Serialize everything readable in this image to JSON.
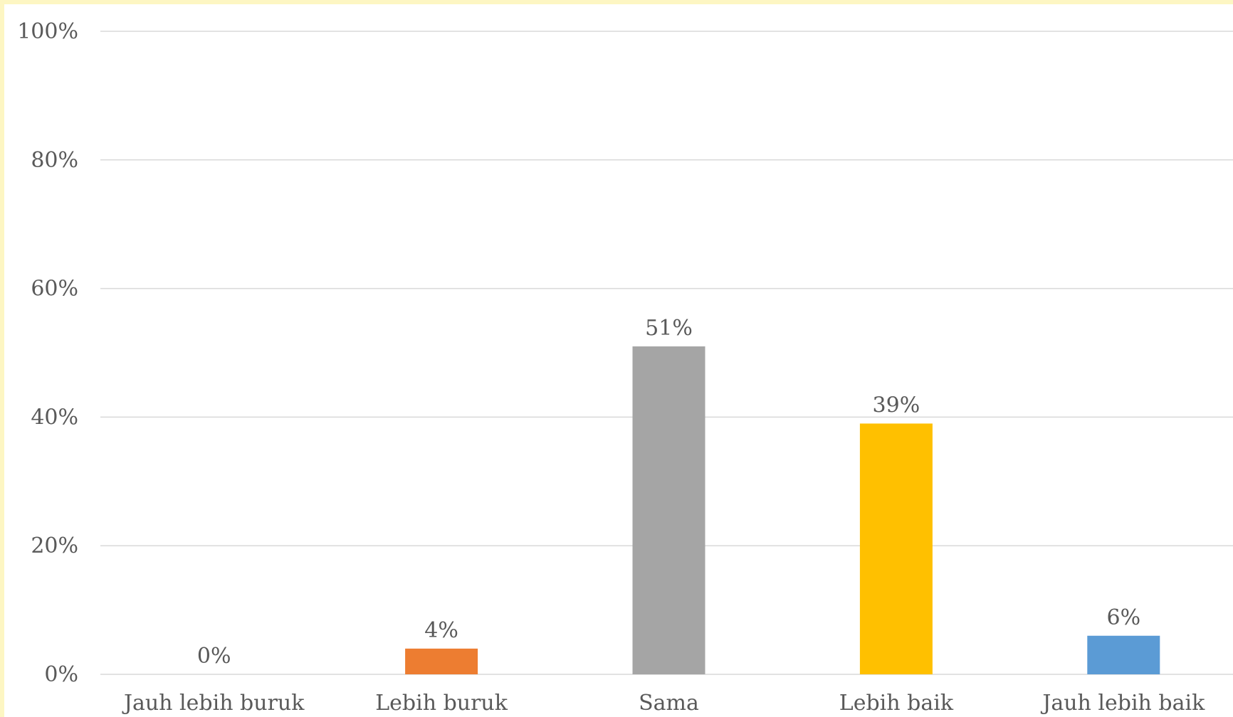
{
  "chart_data": {
    "type": "bar",
    "categories": [
      "Jauh lebih buruk",
      "Lebih buruk",
      "Sama",
      "Lebih baik",
      "Jauh lebih baik"
    ],
    "values": [
      0,
      4,
      51,
      39,
      6
    ],
    "value_labels": [
      "0%",
      "4%",
      "51%",
      "39%",
      "6%"
    ],
    "bar_colors": [
      "#4472c4",
      "#ed7d31",
      "#a5a5a5",
      "#ffc000",
      "#5b9bd5"
    ],
    "title": "",
    "xlabel": "",
    "ylabel": "",
    "ylim": [
      0,
      100
    ],
    "y_ticks": [
      0,
      20,
      40,
      60,
      80,
      100
    ],
    "y_tick_labels": [
      "0%",
      "20%",
      "40%",
      "60%",
      "80%",
      "100%"
    ],
    "grid": true,
    "legend": "none"
  },
  "colors": {
    "grid": "#d9d9d9",
    "text": "#595959",
    "frame": "#fdf6c3"
  }
}
